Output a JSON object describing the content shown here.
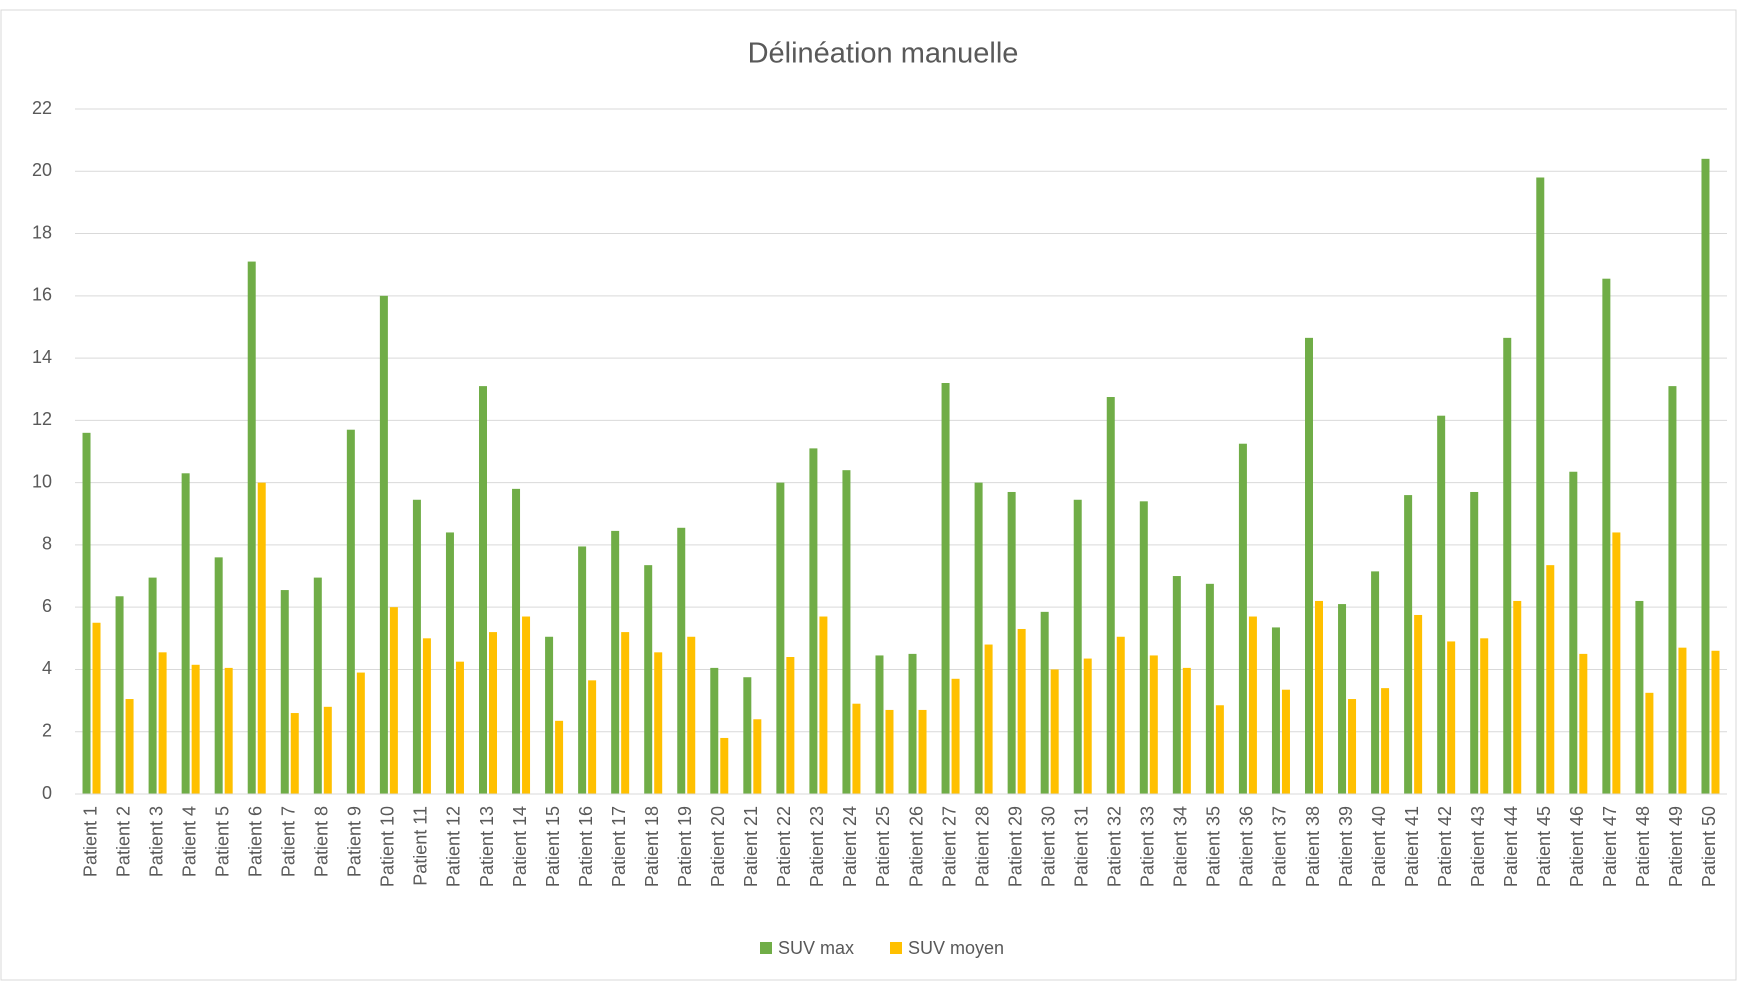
{
  "chart_data": {
    "type": "bar",
    "title": "Délinéation manuelle",
    "categories": [
      "Patient 1",
      "Patient 2",
      "Patient 3",
      "Patient 4",
      "Patient 5",
      "Patient 6",
      "Patient 7",
      "Patient 8",
      "Patient 9",
      "Patient 10",
      "Patient 11",
      "Patient 12",
      "Patient 13",
      "Patient 14",
      "Patient 15",
      "Patient 16",
      "Patient 17",
      "Patient 18",
      "Patient 19",
      "Patient 20",
      "Patient 21",
      "Patient 22",
      "Patient 23",
      "Patient 24",
      "Patient 25",
      "Patient 26",
      "Patient 27",
      "Patient 28",
      "Patient 29",
      "Patient 30",
      "Patient 31",
      "Patient 32",
      "Patient 33",
      "Patient 34",
      "Patient 35",
      "Patient 36",
      "Patient 37",
      "Patient 38",
      "Patient 39",
      "Patient 40",
      "Patient 41",
      "Patient 42",
      "Patient 43",
      "Patient 44",
      "Patient 45",
      "Patient 46",
      "Patient 47",
      "Patient 48",
      "Patient 49",
      "Patient 50"
    ],
    "series": [
      {
        "name": "SUV max",
        "color": "#70ad47",
        "values": [
          11.6,
          6.35,
          6.95,
          10.3,
          7.6,
          17.1,
          6.55,
          6.95,
          11.7,
          16.0,
          9.45,
          8.4,
          13.1,
          9.8,
          5.05,
          7.95,
          8.45,
          7.35,
          8.55,
          4.05,
          3.75,
          10.0,
          11.1,
          10.4,
          4.45,
          4.5,
          13.2,
          10.0,
          9.7,
          5.85,
          9.45,
          12.75,
          9.4,
          7.0,
          6.75,
          11.25,
          5.35,
          14.65,
          6.1,
          7.15,
          9.6,
          12.15,
          9.7,
          14.65,
          19.8,
          10.35,
          16.55,
          6.2,
          13.1,
          20.4
        ]
      },
      {
        "name": "SUV moyen",
        "color": "#ffc000",
        "values": [
          5.5,
          3.05,
          4.55,
          4.15,
          4.05,
          10.0,
          2.6,
          2.8,
          3.9,
          6.0,
          5.0,
          4.25,
          5.2,
          5.7,
          2.35,
          3.65,
          5.2,
          4.55,
          5.05,
          1.8,
          2.4,
          4.4,
          5.7,
          2.9,
          2.7,
          2.7,
          3.7,
          4.8,
          5.3,
          4.0,
          4.35,
          5.05,
          4.45,
          4.05,
          2.85,
          5.7,
          3.35,
          6.2,
          3.05,
          3.4,
          5.75,
          4.9,
          5.0,
          6.2,
          7.35,
          4.5,
          8.4,
          3.25,
          4.7,
          4.6
        ]
      }
    ],
    "ylim": [
      0,
      22
    ],
    "yticks": [
      0,
      2,
      4,
      6,
      8,
      10,
      12,
      14,
      16,
      18,
      20,
      22
    ],
    "grid": true,
    "legend": "bottom"
  }
}
